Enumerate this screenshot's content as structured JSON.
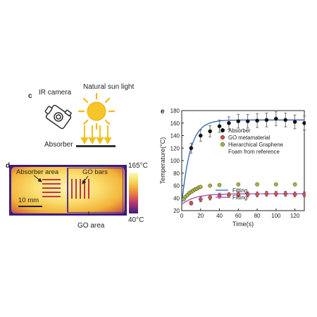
{
  "panel_c": {
    "letter": "c",
    "ir_camera_label": "IR camera",
    "sun_label": "Natural sun light",
    "absorber_label": "Absorber"
  },
  "panel_d": {
    "letter": "d",
    "absorber_area_label": "Absorber area",
    "go_bars_label": "GO bars",
    "scale_label": "10 mm",
    "go_area_label": "GO area",
    "colorbar_max": "165°C",
    "colorbar_min": "40°C",
    "colors": {
      "hot": "#f6d24a",
      "cool": "#3a1b84",
      "bars": "#c2334c"
    }
  },
  "chart_data": {
    "panel_letter": "e",
    "type": "scatter",
    "xlabel": "Time(s)",
    "ylabel": "Temperature(°C)",
    "xlim": [
      0,
      130
    ],
    "ylim": [
      20,
      180
    ],
    "xticks": [
      "0",
      "20",
      "40",
      "60",
      "80",
      "100",
      "120"
    ],
    "yticks": [
      "20",
      "40",
      "60",
      "80",
      "100",
      "120",
      "140",
      "160",
      "180"
    ],
    "legend_position": "center-right",
    "series": [
      {
        "name": "Absorber",
        "color": "#111111",
        "marker": "circle",
        "x": [
          10,
          20,
          30,
          40,
          50,
          60,
          70,
          80,
          90,
          100,
          110,
          120,
          130
        ],
        "y": [
          120,
          140,
          147,
          155,
          160,
          163,
          163,
          164,
          165,
          167,
          165,
          162,
          160
        ],
        "err": [
          8,
          9,
          9,
          10,
          10,
          11,
          11,
          11,
          11,
          11,
          11,
          11,
          11
        ]
      },
      {
        "name": "GO metamaterial",
        "color": "#e04a4a",
        "marker": "circle",
        "x": [
          10,
          20,
          30,
          40,
          50,
          60,
          70,
          80,
          90,
          100,
          110,
          120,
          130
        ],
        "y": [
          32,
          38,
          41,
          44,
          45,
          46,
          46,
          46,
          47,
          47,
          47,
          46,
          46
        ],
        "err": [
          3,
          4,
          4,
          4,
          4,
          4,
          4,
          4,
          4,
          4,
          4,
          4,
          4
        ]
      },
      {
        "name": "Hierarchical Graphene Foam from reference",
        "color": "#aab43a",
        "marker": "circle",
        "x": [
          2,
          4,
          6,
          8,
          10,
          12,
          14,
          16,
          18,
          20,
          30,
          40,
          60,
          80,
          100,
          120
        ],
        "y": [
          38,
          42,
          45,
          48,
          50,
          52,
          54,
          55,
          57,
          58,
          60,
          61,
          62,
          62,
          62,
          62
        ]
      }
    ],
    "fits": [
      {
        "name": "Fitting",
        "color": "#2f5fb8",
        "t0": 0,
        "y0": 30,
        "ymax": 165,
        "tau": 9
      },
      {
        "name": "Fitting",
        "color": "#a14bc8",
        "t0": 0,
        "y0": 30,
        "ymax": 47,
        "tau": 14
      }
    ]
  }
}
